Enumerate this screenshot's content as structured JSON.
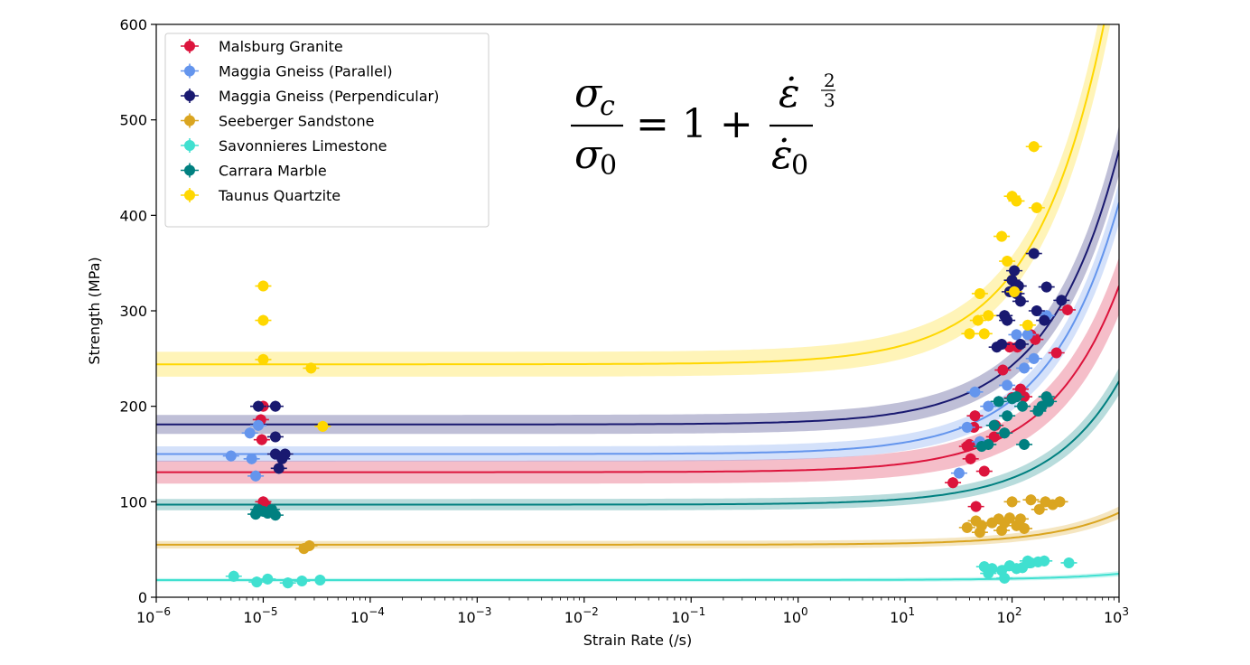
{
  "chart_data": {
    "type": "scatter",
    "xlabel": "Strain Rate (/s)",
    "ylabel": "Strength (MPa)",
    "xscale": "log",
    "xlim": [
      1e-06,
      1000
    ],
    "ylim": [
      0,
      600
    ],
    "x_ticks": [
      {
        "base": "10",
        "exp": "−6"
      },
      {
        "base": "10",
        "exp": "−5"
      },
      {
        "base": "10",
        "exp": "−4"
      },
      {
        "base": "10",
        "exp": "−3"
      },
      {
        "base": "10",
        "exp": "−2"
      },
      {
        "base": "10",
        "exp": "−1"
      },
      {
        "base": "10",
        "exp": "0"
      },
      {
        "base": "10",
        "exp": "1"
      },
      {
        "base": "10",
        "exp": "2"
      },
      {
        "base": "10",
        "exp": "3"
      }
    ],
    "y_ticks": [
      "0",
      "100",
      "200",
      "300",
      "400",
      "500",
      "600"
    ],
    "legend_position": "top-left",
    "grid": false,
    "equation": {
      "lhs_num": "σ",
      "lhs_num_sub": "c",
      "lhs_den": "σ",
      "lhs_den_sub": "0",
      "equals_one_plus": "= 1 +",
      "rhs_num": "ε̇",
      "rhs_den": "ε̇",
      "rhs_den_sub": "0",
      "exp_num": "2",
      "exp_den": "3"
    },
    "series": [
      {
        "name": "Malsburg Granite",
        "color": "#dc143c",
        "fit": {
          "sigma0": 131,
          "rate0": 550,
          "band": 12
        },
        "points": [
          [
            1e-05,
            100
          ],
          [
            1.05e-05,
            97
          ],
          [
            9.5e-06,
            186
          ],
          [
            9.7e-06,
            165
          ],
          [
            1e-05,
            200
          ],
          [
            28,
            120
          ],
          [
            38,
            158
          ],
          [
            40,
            160
          ],
          [
            41,
            145
          ],
          [
            44,
            178
          ],
          [
            45,
            190
          ],
          [
            46,
            95
          ],
          [
            55,
            132
          ],
          [
            68,
            168
          ],
          [
            82,
            238
          ],
          [
            95,
            262
          ],
          [
            112,
            262
          ],
          [
            130,
            210
          ],
          [
            150,
            275
          ],
          [
            165,
            270
          ],
          [
            260,
            256
          ],
          [
            330,
            301
          ],
          [
            70,
            180
          ],
          [
            120,
            218
          ],
          [
            100,
            209
          ]
        ]
      },
      {
        "name": "Maggia Gneiss (Parallel)",
        "color": "#6495ed",
        "fit": {
          "sigma0": 150,
          "rate0": 430,
          "band": 8
        },
        "points": [
          [
            5e-06,
            148
          ],
          [
            7.5e-06,
            172
          ],
          [
            7.8e-06,
            145
          ],
          [
            8.5e-06,
            127
          ],
          [
            9e-06,
            180
          ],
          [
            32,
            130
          ],
          [
            38,
            178
          ],
          [
            45,
            215
          ],
          [
            60,
            200
          ],
          [
            75,
            205
          ],
          [
            90,
            222
          ],
          [
            110,
            275
          ],
          [
            130,
            240
          ],
          [
            160,
            250
          ],
          [
            210,
            295
          ],
          [
            50,
            163
          ],
          [
            140,
            275
          ]
        ]
      },
      {
        "name": "Maggia Gneiss (Perpendicular)",
        "color": "#191970",
        "fit": {
          "sigma0": 181,
          "rate0": 500,
          "band": 10
        },
        "points": [
          [
            9e-06,
            200
          ],
          [
            1.3e-05,
            200
          ],
          [
            1.3e-05,
            168
          ],
          [
            1.3e-05,
            150
          ],
          [
            1.4e-05,
            135
          ],
          [
            1.6e-05,
            150
          ],
          [
            1.5e-05,
            145
          ],
          [
            72,
            262
          ],
          [
            80,
            265
          ],
          [
            85,
            295
          ],
          [
            90,
            290
          ],
          [
            95,
            320
          ],
          [
            100,
            332
          ],
          [
            105,
            342
          ],
          [
            110,
            318
          ],
          [
            115,
            326
          ],
          [
            120,
            310
          ],
          [
            160,
            360
          ],
          [
            170,
            300
          ],
          [
            210,
            325
          ],
          [
            290,
            311
          ],
          [
            200,
            290
          ],
          [
            120,
            265
          ]
        ]
      },
      {
        "name": "Seeberger Sandstone",
        "color": "#daa520",
        "fit": {
          "sigma0": 55,
          "rate0": 2100,
          "band": 4
        },
        "points": [
          [
            2.4e-05,
            51
          ],
          [
            2.7e-05,
            54
          ],
          [
            38,
            73
          ],
          [
            46,
            80
          ],
          [
            50,
            68
          ],
          [
            52,
            75
          ],
          [
            75,
            82
          ],
          [
            80,
            70
          ],
          [
            85,
            78
          ],
          [
            95,
            83
          ],
          [
            100,
            100
          ],
          [
            110,
            75
          ],
          [
            120,
            82
          ],
          [
            130,
            72
          ],
          [
            150,
            102
          ],
          [
            180,
            92
          ],
          [
            205,
            100
          ],
          [
            240,
            97
          ],
          [
            280,
            100
          ],
          [
            65,
            78
          ]
        ]
      },
      {
        "name": "Savonnieres Limestone",
        "color": "#40e0d0",
        "fit": {
          "sigma0": 18,
          "rate0": 4500,
          "band": 2
        },
        "points": [
          [
            5.3e-06,
            22
          ],
          [
            8.7e-06,
            16
          ],
          [
            1.1e-05,
            19
          ],
          [
            1.7e-05,
            15
          ],
          [
            2.3e-05,
            17
          ],
          [
            3.4e-05,
            18
          ],
          [
            55,
            32
          ],
          [
            60,
            25
          ],
          [
            65,
            30
          ],
          [
            80,
            28
          ],
          [
            85,
            20
          ],
          [
            95,
            33
          ],
          [
            110,
            30
          ],
          [
            125,
            31
          ],
          [
            140,
            38
          ],
          [
            150,
            36
          ],
          [
            175,
            37
          ],
          [
            200,
            38
          ],
          [
            340,
            36
          ]
        ]
      },
      {
        "name": "Carrara Marble",
        "color": "#008080",
        "fit": {
          "sigma0": 97,
          "rate0": 650,
          "band": 6
        },
        "points": [
          [
            8.5e-06,
            87
          ],
          [
            9e-06,
            92
          ],
          [
            1e-05,
            90
          ],
          [
            1.1e-05,
            88
          ],
          [
            1.2e-05,
            92
          ],
          [
            1.3e-05,
            86
          ],
          [
            52,
            158
          ],
          [
            60,
            160
          ],
          [
            68,
            180
          ],
          [
            75,
            205
          ],
          [
            85,
            172
          ],
          [
            90,
            190
          ],
          [
            100,
            208
          ],
          [
            110,
            210
          ],
          [
            125,
            200
          ],
          [
            130,
            160
          ],
          [
            175,
            195
          ],
          [
            190,
            200
          ],
          [
            210,
            210
          ],
          [
            220,
            205
          ]
        ]
      },
      {
        "name": "Taunus Quartzite",
        "color": "#ffd700",
        "fit": {
          "sigma0": 244,
          "rate0": 410,
          "band": 13
        },
        "points": [
          [
            1e-05,
            326
          ],
          [
            1e-05,
            290
          ],
          [
            1e-05,
            249
          ],
          [
            2.8e-05,
            240
          ],
          [
            3.6e-05,
            179
          ],
          [
            40,
            276
          ],
          [
            48,
            290
          ],
          [
            50,
            318
          ],
          [
            55,
            276
          ],
          [
            60,
            295
          ],
          [
            80,
            378
          ],
          [
            90,
            352
          ],
          [
            100,
            420
          ],
          [
            105,
            320
          ],
          [
            110,
            415
          ],
          [
            160,
            472
          ],
          [
            170,
            408
          ],
          [
            140,
            285
          ]
        ]
      }
    ]
  }
}
